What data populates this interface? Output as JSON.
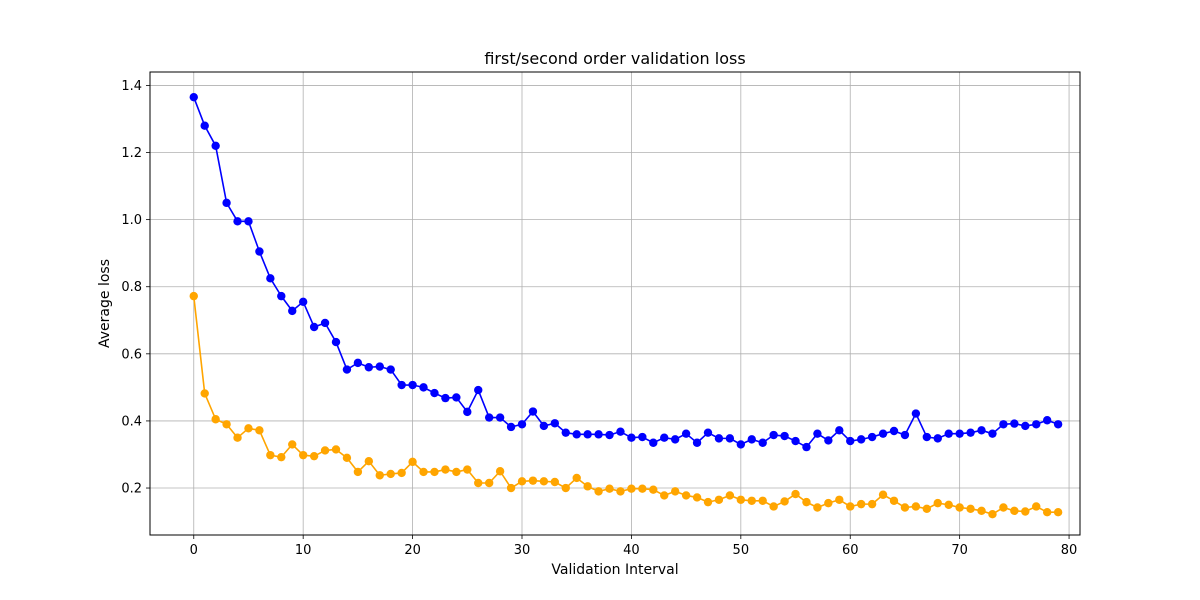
{
  "chart_data": {
    "type": "line",
    "title": "first/second order validation loss",
    "xlabel": "Validation Interval",
    "ylabel": "Average loss",
    "xlim": [
      -4,
      81
    ],
    "ylim": [
      0.06,
      1.44
    ],
    "xticks": [
      0,
      10,
      20,
      30,
      40,
      50,
      60,
      70,
      80
    ],
    "yticks": [
      0.2,
      0.4,
      0.6,
      0.8,
      1.0,
      1.2,
      1.4
    ],
    "ytick_labels": [
      "0.2",
      "0.4",
      "0.6",
      "0.8",
      "1.0",
      "1.2",
      "1.4"
    ],
    "grid": true,
    "legend": "none",
    "series": [
      {
        "color": "#0000ff",
        "marker": "circle",
        "values": [
          1.365,
          1.28,
          1.22,
          1.05,
          0.995,
          0.995,
          0.905,
          0.825,
          0.772,
          0.728,
          0.755,
          0.68,
          0.692,
          0.635,
          0.553,
          0.573,
          0.56,
          0.562,
          0.553,
          0.507,
          0.507,
          0.5,
          0.483,
          0.468,
          0.47,
          0.427,
          0.492,
          0.41,
          0.41,
          0.382,
          0.39,
          0.428,
          0.385,
          0.393,
          0.365,
          0.36,
          0.36,
          0.36,
          0.358,
          0.368,
          0.35,
          0.352,
          0.335,
          0.35,
          0.345,
          0.362,
          0.335,
          0.365,
          0.348,
          0.348,
          0.33,
          0.345,
          0.335,
          0.358,
          0.355,
          0.34,
          0.322,
          0.362,
          0.342,
          0.372,
          0.34,
          0.345,
          0.352,
          0.362,
          0.37,
          0.358,
          0.422,
          0.352,
          0.348,
          0.362,
          0.362,
          0.365,
          0.372,
          0.362,
          0.39,
          0.392,
          0.385,
          0.39,
          0.402,
          0.39
        ]
      },
      {
        "color": "#ffa500",
        "marker": "circle",
        "values": [
          0.772,
          0.482,
          0.405,
          0.39,
          0.35,
          0.378,
          0.372,
          0.298,
          0.292,
          0.33,
          0.298,
          0.295,
          0.312,
          0.315,
          0.29,
          0.248,
          0.28,
          0.238,
          0.242,
          0.245,
          0.278,
          0.248,
          0.248,
          0.255,
          0.248,
          0.255,
          0.215,
          0.215,
          0.25,
          0.2,
          0.22,
          0.222,
          0.22,
          0.218,
          0.2,
          0.23,
          0.205,
          0.19,
          0.198,
          0.19,
          0.198,
          0.198,
          0.195,
          0.178,
          0.19,
          0.178,
          0.172,
          0.158,
          0.165,
          0.178,
          0.165,
          0.162,
          0.162,
          0.145,
          0.16,
          0.182,
          0.158,
          0.142,
          0.155,
          0.165,
          0.145,
          0.152,
          0.152,
          0.18,
          0.162,
          0.142,
          0.145,
          0.138,
          0.155,
          0.15,
          0.142,
          0.138,
          0.132,
          0.122,
          0.142,
          0.132,
          0.13,
          0.145,
          0.128,
          0.128
        ]
      }
    ]
  }
}
